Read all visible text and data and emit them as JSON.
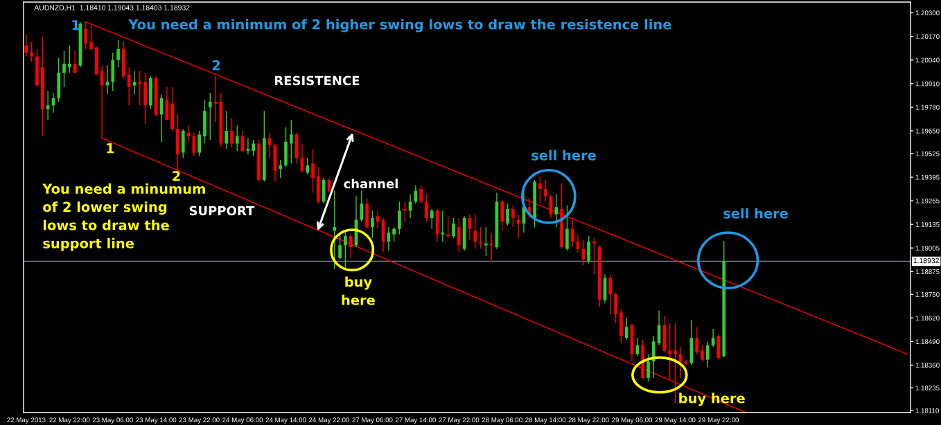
{
  "chart_data": {
    "type": "candlestick",
    "title": "AUDNZD,H1  1.18410 1.19043 1.18403 1.18932",
    "ylim": [
      1.18099,
      1.20359
    ],
    "categories": [
      "22 May 2013",
      null,
      null,
      null,
      null,
      null,
      null,
      null,
      "22 May 22:00",
      null,
      null,
      null,
      null,
      null,
      null,
      null,
      "23 May 06:00",
      null,
      null,
      null,
      null,
      null,
      null,
      null,
      "23 May 14:00",
      null,
      null,
      null,
      null,
      null,
      null,
      null,
      "23 May 22:00",
      null,
      null,
      null,
      null,
      null,
      null,
      null,
      "24 May 06:00",
      null,
      null,
      null,
      null,
      null,
      null,
      null,
      "24 May 14:00",
      null,
      null,
      null,
      null,
      null,
      null,
      null,
      "24 May 22:00",
      null,
      null,
      null,
      null,
      null,
      null,
      null,
      "27 May 06:00",
      null,
      null,
      null,
      null,
      null,
      null,
      null,
      "27 May 14:00",
      null,
      null,
      null,
      null,
      null,
      null,
      null,
      "27 May 22:00",
      null,
      null,
      null,
      null,
      null,
      null,
      null,
      "28 May 06:00",
      null,
      null,
      null,
      null,
      null,
      null,
      null,
      "28 May 14:00",
      null,
      null,
      null,
      null,
      null,
      null,
      null,
      "28 May 22:00",
      null,
      null,
      null,
      null,
      null,
      null,
      null,
      "29 May 06:00",
      null,
      null,
      null,
      null,
      null,
      null,
      null,
      "29 May 14:00",
      null,
      null,
      null,
      null,
      null,
      null,
      null,
      "29 May 22:00",
      null,
      null,
      null,
      null,
      null,
      null,
      null,
      null,
      null,
      null,
      null,
      null,
      null,
      null,
      null,
      null,
      null,
      null,
      null,
      null,
      null,
      null,
      null,
      null,
      null,
      null,
      null,
      null,
      null,
      null,
      null,
      null,
      null,
      null,
      null
    ],
    "yticks": [
      {
        "value": 1.203,
        "label": "1.20300"
      },
      {
        "value": 1.2017,
        "label": "1.20170"
      },
      {
        "value": 1.2004,
        "label": "1.20040"
      },
      {
        "value": 1.1991,
        "label": "1.19910"
      },
      {
        "value": 1.1978,
        "label": "1.19780"
      },
      {
        "value": 1.1965,
        "label": "1.19650"
      },
      {
        "value": 1.19525,
        "label": "1.19525"
      },
      {
        "value": 1.19395,
        "label": "1.19395"
      },
      {
        "value": 1.19265,
        "label": "1.19265"
      },
      {
        "value": 1.19135,
        "label": "1.19135"
      },
      {
        "value": 1.19005,
        "label": "1.19005"
      },
      {
        "value": 1.18875,
        "label": "1.18875"
      },
      {
        "value": 1.1875,
        "label": "1.18750"
      },
      {
        "value": 1.1862,
        "label": "1.18620"
      },
      {
        "value": 1.1849,
        "label": "1.18490"
      },
      {
        "value": 1.1836,
        "label": "1.18360"
      },
      {
        "value": 1.18235,
        "label": "1.18235"
      },
      {
        "value": 1.1811,
        "label": "1.18110"
      }
    ],
    "ref_lines": [
      {
        "axis": "y",
        "value": 1.18932,
        "label": "1.18932",
        "color": "#778899"
      }
    ],
    "series": [
      {
        "ohlc": [
          [
            1.2012,
            1.2018,
            1.2006,
            1.2008
          ],
          [
            1.2008,
            1.2014,
            1.2003,
            1.2006
          ],
          [
            1.2006,
            1.201,
            1.1989,
            1.199
          ],
          [
            1.2,
            1.2017,
            1.1962,
            1.1977
          ],
          [
            1.1977,
            1.1987,
            1.1971,
            1.1979
          ],
          [
            1.1979,
            1.1986,
            1.1975,
            1.1983
          ],
          [
            1.1983,
            1.2005,
            1.1981,
            1.1997
          ],
          [
            1.1997,
            1.2009,
            1.1989,
            1.2002
          ],
          [
            1.2,
            1.2012,
            1.1997,
            1.2002
          ],
          [
            1.2002,
            1.2009,
            1.1997,
            1.1997
          ],
          [
            1.2001,
            1.2025,
            1.2,
            1.2024
          ],
          [
            1.2021,
            1.2025,
            1.201,
            1.2013
          ],
          [
            1.2014,
            1.2023,
            1.2009,
            1.201
          ],
          [
            1.2011,
            1.2011,
            1.1996,
            1.1996
          ],
          [
            1.1998,
            1.2001,
            1.199,
            1.199
          ],
          [
            1.199,
            1.2001,
            1.1985,
            1.1992
          ],
          [
            1.1992,
            1.2008,
            1.1987,
            1.2004
          ],
          [
            1.2004,
            1.2015,
            1.2,
            1.201
          ],
          [
            1.201,
            1.2014,
            1.1994,
            1.1995
          ],
          [
            1.1996,
            1.2,
            1.1979,
            1.1989
          ],
          [
            1.199,
            1.1998,
            1.1985,
            1.1992
          ],
          [
            1.1992,
            1.1998,
            1.1979,
            1.1991
          ],
          [
            1.1992,
            1.1997,
            1.1969,
            1.1979
          ],
          [
            1.1979,
            1.1995,
            1.1977,
            1.1994
          ],
          [
            1.1994,
            1.1995,
            1.1973,
            1.1974
          ],
          [
            1.1974,
            1.1985,
            1.1959,
            1.1983
          ],
          [
            1.1982,
            1.1989,
            1.1971,
            1.1971
          ],
          [
            1.198,
            1.1989,
            1.1965,
            1.1966
          ],
          [
            1.1966,
            1.1974,
            1.1943,
            1.1952
          ],
          [
            1.1953,
            1.1966,
            1.195,
            1.1965
          ],
          [
            1.1964,
            1.1968,
            1.1959,
            1.1962
          ],
          [
            1.1962,
            1.1964,
            1.1951,
            1.1953
          ],
          [
            1.1953,
            1.1965,
            1.1951,
            1.1963
          ],
          [
            1.1962,
            1.1982,
            1.1958,
            1.1976
          ],
          [
            1.1978,
            1.1986,
            1.196,
            1.1981
          ],
          [
            1.1981,
            1.1995,
            1.197,
            1.198
          ],
          [
            1.1981,
            1.1986,
            1.1956,
            1.1958
          ],
          [
            1.1958,
            1.1976,
            1.1955,
            1.1965
          ],
          [
            1.1965,
            1.1972,
            1.1956,
            1.1958
          ],
          [
            1.1958,
            1.1968,
            1.1954,
            1.1962
          ],
          [
            1.1962,
            1.1965,
            1.1953,
            1.1954
          ],
          [
            1.1954,
            1.1961,
            1.1952,
            1.1955
          ],
          [
            1.1954,
            1.196,
            1.1951,
            1.1958
          ],
          [
            1.1958,
            1.196,
            1.1937,
            1.1938
          ],
          [
            1.1938,
            1.1976,
            1.1937,
            1.1961
          ],
          [
            1.1961,
            1.1964,
            1.195,
            1.1957
          ],
          [
            1.1957,
            1.1958,
            1.1937,
            1.1943
          ],
          [
            1.1944,
            1.1949,
            1.1939,
            1.1946
          ],
          [
            1.1946,
            1.1967,
            1.1945,
            1.1959
          ],
          [
            1.1958,
            1.1971,
            1.1947,
            1.1963
          ],
          [
            1.1963,
            1.1964,
            1.1947,
            1.195
          ],
          [
            1.195,
            1.1958,
            1.1942,
            1.1943
          ],
          [
            1.1942,
            1.195,
            1.1941,
            1.1946
          ],
          [
            1.1947,
            1.1955,
            1.1931,
            1.1939
          ],
          [
            1.194,
            1.1945,
            1.1925,
            1.1926
          ],
          [
            1.1926,
            1.1939,
            1.1925,
            1.1938
          ],
          [
            1.1938,
            1.1939,
            1.1931,
            1.1932
          ],
          [
            1.191,
            1.1932,
            1.1889,
            1.1912
          ],
          [
            1.1895,
            1.1909,
            1.1894,
            1.1902
          ],
          [
            1.1902,
            1.191,
            1.1889,
            1.1907
          ],
          [
            1.1907,
            1.1908,
            1.1895,
            1.1901
          ],
          [
            1.1902,
            1.1929,
            1.1901,
            1.1916
          ],
          [
            1.1916,
            1.1932,
            1.1915,
            1.1925
          ],
          [
            1.1925,
            1.1928,
            1.1911,
            1.1912
          ],
          [
            1.1912,
            1.1921,
            1.1906,
            1.1917
          ],
          [
            1.1918,
            1.1921,
            1.1911,
            1.1915
          ],
          [
            1.1916,
            1.1917,
            1.1898,
            1.1904
          ],
          [
            1.1904,
            1.1912,
            1.1899,
            1.1909
          ],
          [
            1.1908,
            1.1912,
            1.1904,
            1.1911
          ],
          [
            1.1911,
            1.1926,
            1.1908,
            1.1921
          ],
          [
            1.1922,
            1.1926,
            1.1915,
            1.1921
          ],
          [
            1.1921,
            1.193,
            1.1917,
            1.1926
          ],
          [
            1.1926,
            1.1935,
            1.1925,
            1.1932
          ],
          [
            1.1933,
            1.1935,
            1.1925,
            1.1926
          ],
          [
            1.1926,
            1.193,
            1.1915,
            1.1917
          ],
          [
            1.1917,
            1.1922,
            1.1911,
            1.1921
          ],
          [
            1.1921,
            1.1922,
            1.1904,
            1.1908
          ],
          [
            1.1908,
            1.1921,
            1.1904,
            1.1909
          ],
          [
            1.1908,
            1.1918,
            1.1906,
            1.1907
          ],
          [
            1.1907,
            1.1917,
            1.1906,
            1.1914
          ],
          [
            1.1912,
            1.1917,
            1.1898,
            1.1902
          ],
          [
            1.19,
            1.1918,
            1.1899,
            1.1917
          ],
          [
            1.1917,
            1.1919,
            1.1905,
            1.1911
          ],
          [
            1.191,
            1.1919,
            1.19,
            1.1904
          ],
          [
            1.1904,
            1.1912,
            1.19,
            1.1903
          ],
          [
            1.1902,
            1.1912,
            1.1896,
            1.1903
          ],
          [
            1.1903,
            1.1909,
            1.1893,
            1.1902
          ],
          [
            1.1901,
            1.1931,
            1.19,
            1.1926
          ],
          [
            1.1926,
            1.1927,
            1.191,
            1.1915
          ],
          [
            1.1914,
            1.1925,
            1.1913,
            1.1922
          ],
          [
            1.1922,
            1.1924,
            1.1912,
            1.1917
          ],
          [
            1.1916,
            1.1919,
            1.1906,
            1.1914
          ],
          [
            1.1914,
            1.1931,
            1.1909,
            1.1923
          ],
          [
            1.1923,
            1.1928,
            1.1917,
            1.1919
          ],
          [
            1.1917,
            1.1938,
            1.1912,
            1.1937
          ],
          [
            1.1936,
            1.194,
            1.1925,
            1.1933
          ],
          [
            1.1933,
            1.1938,
            1.1926,
            1.1929
          ],
          [
            1.1929,
            1.193,
            1.1917,
            1.1919
          ],
          [
            1.1919,
            1.193,
            1.1912,
            1.1923
          ],
          [
            1.1922,
            1.1936,
            1.19,
            1.1901
          ],
          [
            1.19,
            1.1924,
            1.1899,
            1.1911
          ],
          [
            1.1911,
            1.1916,
            1.1901,
            1.1904
          ],
          [
            1.1904,
            1.1908,
            1.1898,
            1.19
          ],
          [
            1.19,
            1.1905,
            1.1891,
            1.1894
          ],
          [
            1.1893,
            1.1907,
            1.1892,
            1.1904
          ],
          [
            1.1904,
            1.1906,
            1.1886,
            1.1903
          ],
          [
            1.1901,
            1.1902,
            1.1868,
            1.1872
          ],
          [
            1.1872,
            1.1886,
            1.187,
            1.1884
          ],
          [
            1.1884,
            1.1886,
            1.1864,
            1.1875
          ],
          [
            1.1875,
            1.1876,
            1.1859,
            1.1864
          ],
          [
            1.1865,
            1.1867,
            1.1848,
            1.1852
          ],
          [
            1.1851,
            1.1862,
            1.185,
            1.1857
          ],
          [
            1.1858,
            1.1859,
            1.1838,
            1.1842
          ],
          [
            1.1842,
            1.1851,
            1.1841,
            1.1847
          ],
          [
            1.1847,
            1.185,
            1.1828,
            1.1829
          ],
          [
            1.1829,
            1.1842,
            1.1827,
            1.1838
          ],
          [
            1.1838,
            1.1852,
            1.1829,
            1.1849
          ],
          [
            1.1848,
            1.1866,
            1.1847,
            1.1858
          ],
          [
            1.1858,
            1.1863,
            1.1843,
            1.1844
          ],
          [
            1.1844,
            1.1859,
            1.1828,
            1.1842
          ],
          [
            1.1844,
            1.1859,
            1.1815,
            1.1842
          ],
          [
            1.1842,
            1.1846,
            1.1829,
            1.1838
          ],
          [
            1.1838,
            1.1839,
            1.1836,
            1.1837
          ],
          [
            1.1837,
            1.1861,
            1.1836,
            1.1851
          ],
          [
            1.1851,
            1.1857,
            1.1842,
            1.1843
          ],
          [
            1.1844,
            1.1847,
            1.1838,
            1.1839
          ],
          [
            1.1839,
            1.1849,
            1.1835,
            1.1847
          ],
          [
            1.1847,
            1.1856,
            1.1846,
            1.1851
          ],
          [
            1.1852,
            1.1853,
            1.1839,
            1.184
          ],
          [
            1.1841,
            1.19043,
            1.18403,
            1.18932
          ],
          null,
          null,
          null,
          null,
          null,
          null,
          null,
          null,
          null,
          null,
          null,
          null,
          null,
          null,
          null,
          null,
          null,
          null,
          null,
          null,
          null,
          null,
          null,
          null,
          null,
          null,
          null,
          null,
          null,
          null,
          null,
          null,
          null,
          null
        ],
        "colors": [
          "#ff0000",
          "#ff0000",
          "#ff0000",
          "#ff0000",
          "#32cd32",
          "#32cd32",
          "#32cd32",
          "#32cd32",
          "#32cd32",
          "#ff0000",
          "#32cd32",
          "#ff0000",
          "#ff0000",
          "#ff0000",
          "#ff0000",
          "#32cd32",
          "#32cd32",
          "#32cd32",
          "#ff0000",
          "#ff0000",
          "#32cd32",
          "#ff0000",
          "#ff0000",
          "#32cd32",
          "#ff0000",
          "#32cd32",
          "#ff0000",
          "#ff0000",
          "#ff0000",
          "#32cd32",
          "#ff0000",
          "#ff0000",
          "#32cd32",
          "#32cd32",
          "#32cd32",
          "#ff0000",
          "#ff0000",
          "#32cd32",
          "#ff0000",
          "#32cd32",
          "#ff0000",
          "#32cd32",
          "#32cd32",
          "#ff0000",
          "#32cd32",
          "#ff0000",
          "#ff0000",
          "#32cd32",
          "#32cd32",
          "#32cd32",
          "#ff0000",
          "#ff0000",
          "#32cd32",
          "#ff0000",
          "#ff0000",
          "#32cd32",
          "#ff0000",
          "#32cd32",
          "#32cd32",
          "#32cd32",
          "#ff0000",
          "#32cd32",
          "#32cd32",
          "#ff0000",
          "#32cd32",
          "#ff0000",
          "#ff0000",
          "#32cd32",
          "#32cd32",
          "#32cd32",
          "#ff0000",
          "#32cd32",
          "#32cd32",
          "#ff0000",
          "#ff0000",
          "#32cd32",
          "#ff0000",
          "#32cd32",
          "#ff0000",
          "#32cd32",
          "#ff0000",
          "#32cd32",
          "#ff0000",
          "#ff0000",
          "#ff0000",
          "#32cd32",
          "#ff0000",
          "#32cd32",
          "#ff0000",
          "#32cd32",
          "#ff0000",
          "#ff0000",
          "#32cd32",
          "#ff0000",
          "#32cd32",
          "#ff0000",
          "#ff0000",
          "#ff0000",
          "#32cd32",
          "#ff0000",
          "#32cd32",
          "#ff0000",
          "#ff0000",
          "#ff0000",
          "#32cd32",
          "#ff0000",
          "#ff0000",
          "#32cd32",
          "#ff0000",
          "#ff0000",
          "#ff0000",
          "#32cd32",
          "#ff0000",
          "#32cd32",
          "#ff0000",
          "#32cd32",
          "#32cd32",
          "#32cd32",
          "#ff0000",
          "#ff0000",
          "#ff0000",
          "#ff0000",
          "#ff0000",
          "#32cd32",
          "#ff0000",
          "#ff0000",
          "#32cd32",
          "#32cd32",
          "#ff0000",
          "#32cd32",
          null,
          null,
          null,
          null,
          null,
          null,
          null,
          null,
          null,
          null,
          null,
          null,
          null,
          null,
          null,
          null,
          null,
          null,
          null,
          null,
          null,
          null,
          null,
          null,
          null,
          null,
          null,
          null,
          null,
          null,
          null,
          null,
          null,
          null
        ]
      },
      {
        "type": "line",
        "color": "#ff0000",
        "values": [
          null,
          null,
          null,
          null,
          null,
          null,
          null,
          null,
          null,
          null,
          null,
          1.2025,
          null,
          null,
          null,
          null,
          null,
          null,
          null,
          null,
          null,
          null,
          null,
          null,
          null,
          null,
          null,
          null,
          null,
          null,
          null,
          null,
          null,
          null,
          null,
          null,
          null,
          null,
          null,
          null,
          null,
          null,
          null,
          null,
          null,
          null,
          null,
          null,
          null,
          null,
          null,
          null,
          null,
          null,
          null,
          null,
          null,
          null,
          null,
          null,
          null,
          null,
          null,
          null,
          null,
          null,
          null,
          null,
          null,
          null,
          null,
          null,
          null,
          null,
          null,
          null,
          null,
          null,
          null,
          null,
          null,
          null,
          null,
          null,
          null,
          null,
          null,
          null,
          null,
          null,
          null,
          null,
          null,
          null,
          null,
          null,
          null,
          null,
          null,
          null,
          null,
          null,
          null,
          null,
          null,
          null,
          null,
          null,
          null,
          null,
          null,
          null,
          null,
          null,
          null,
          null,
          null,
          null,
          null,
          null,
          null,
          null,
          null,
          null,
          null,
          null,
          null,
          null,
          null,
          null,
          null,
          null,
          null,
          null,
          null,
          null,
          null,
          null,
          null,
          null,
          null,
          null,
          null,
          null,
          null,
          null,
          null,
          null,
          null,
          null,
          null,
          null,
          null,
          null,
          null,
          null,
          null,
          null,
          null,
          null,
          null,
          null,
          null,
          1.1842
        ]
      },
      {
        "type": "line",
        "color": "#ff0000",
        "values": [
          null,
          null,
          null,
          null,
          null,
          null,
          null,
          null,
          null,
          null,
          null,
          null,
          null,
          null,
          1.1961,
          null,
          null,
          null,
          null,
          null,
          null,
          null,
          null,
          null,
          null,
          null,
          null,
          null,
          null,
          null,
          null,
          null,
          null,
          null,
          null,
          null,
          null,
          null,
          null,
          null,
          null,
          null,
          null,
          null,
          null,
          null,
          null,
          null,
          null,
          null,
          null,
          null,
          null,
          null,
          null,
          null,
          null,
          null,
          null,
          null,
          null,
          null,
          null,
          null,
          null,
          null,
          null,
          null,
          null,
          null,
          null,
          null,
          null,
          null,
          null,
          null,
          null,
          null,
          null,
          null,
          null,
          null,
          null,
          null,
          null,
          null,
          null,
          null,
          null,
          null,
          null,
          null,
          null,
          null,
          null,
          null,
          null,
          null,
          null,
          null,
          null,
          null,
          null,
          null,
          null,
          null,
          null,
          null,
          null,
          null,
          null,
          null,
          null,
          null,
          null,
          null,
          null,
          null,
          null,
          null,
          null,
          null,
          null,
          null,
          null,
          null,
          null,
          null,
          null,
          null,
          null,
          null,
          null,
          1.181,
          null,
          null,
          null,
          null,
          null,
          null,
          null,
          null,
          null,
          null,
          null,
          null,
          null,
          null,
          null,
          null,
          null,
          null,
          null,
          null,
          null,
          null,
          null,
          null,
          null,
          null,
          null,
          null,
          null,
          null
        ]
      }
    ],
    "annotations": [
      "1",
      "You need a minimum of 2 higher swing lows to draw the resistence line",
      "2",
      "RESISTENCE",
      {
        "text": "1",
        "y": 1.1961
      },
      "2",
      "You need a minumum\nof 2 lower swing\nlows to draw the\nsupport line",
      "SUPPORT",
      "channel",
      "buy\nhere",
      "sell here",
      "sell here",
      "buy here"
    ]
  }
}
